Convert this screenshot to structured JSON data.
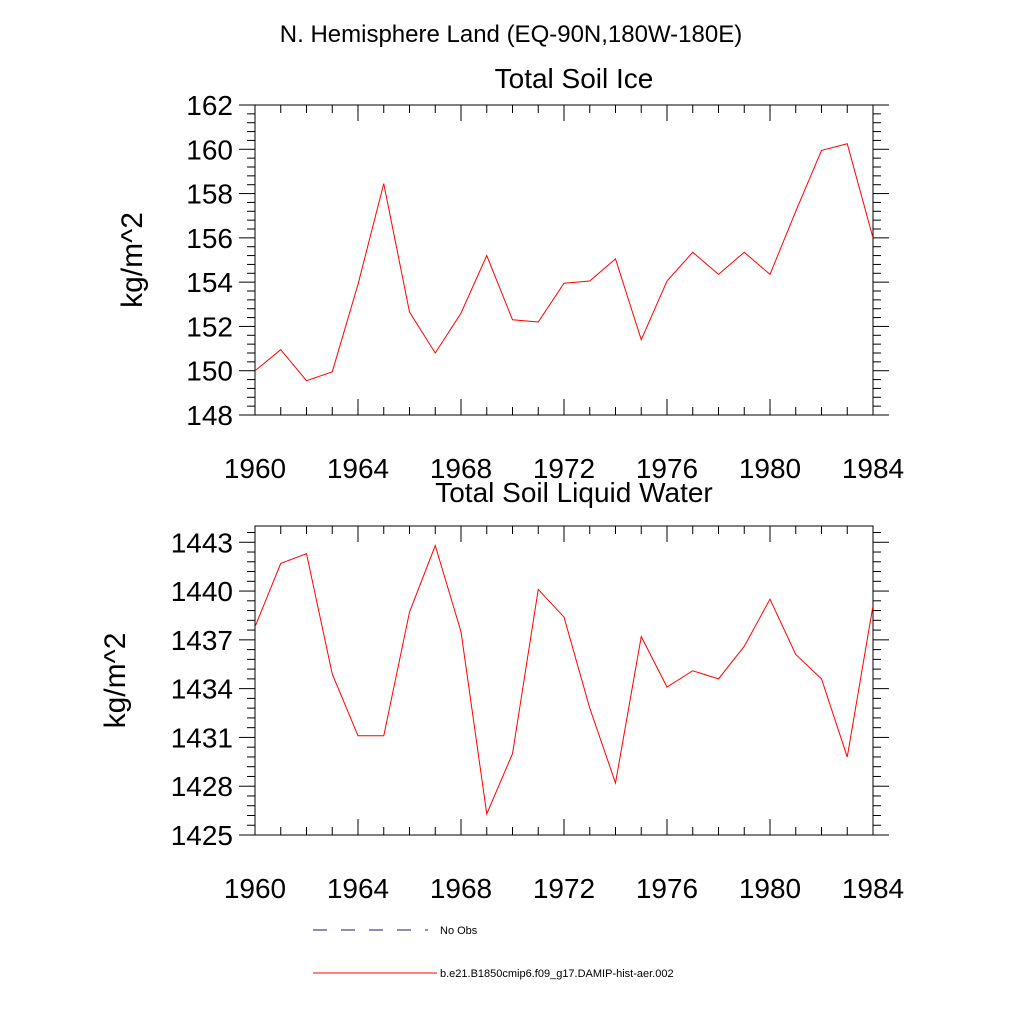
{
  "figure": {
    "main_title": "N. Hemisphere Land (EQ-90N,180W-180E)"
  },
  "colors": {
    "model_line": "#ff0000",
    "obs_line": "#1a1a6e",
    "axes": "#000000"
  },
  "legend": {
    "entries": [
      {
        "label": "No Obs",
        "style": "dashed",
        "color": "#1a1a6e"
      },
      {
        "label": "b.e21.B1850cmip6.f09_g17.DAMIP-hist-aer.002",
        "style": "solid",
        "color": "#ff0000"
      }
    ]
  },
  "chart_data": [
    {
      "type": "line",
      "title": "Total Soil Ice",
      "xlabel": "",
      "ylabel": "kg/m^2",
      "xlim": [
        1960,
        1984
      ],
      "ylim": [
        148,
        162
      ],
      "xticks": [
        1960,
        1964,
        1968,
        1972,
        1976,
        1980,
        1984
      ],
      "yticks": [
        148,
        150,
        152,
        154,
        156,
        158,
        160,
        162
      ],
      "grid": false,
      "x": [
        1960,
        1961,
        1962,
        1963,
        1964,
        1965,
        1966,
        1967,
        1968,
        1969,
        1970,
        1971,
        1972,
        1973,
        1974,
        1975,
        1976,
        1977,
        1978,
        1979,
        1980,
        1981,
        1982,
        1983,
        1984
      ],
      "series": [
        {
          "name": "b.e21.B1850cmip6.f09_g17.DAMIP-hist-aer.002",
          "color": "#ff0000",
          "values": [
            150.0,
            150.95,
            149.55,
            149.95,
            153.9,
            158.45,
            152.65,
            150.8,
            152.6,
            155.2,
            152.3,
            152.2,
            153.95,
            154.05,
            155.05,
            151.4,
            154.05,
            155.35,
            154.35,
            155.35,
            154.35,
            157.2,
            159.95,
            160.25,
            156.0
          ]
        }
      ]
    },
    {
      "type": "line",
      "title": "Total Soil Liquid Water",
      "xlabel": "",
      "ylabel": "kg/m^2",
      "xlim": [
        1960,
        1984
      ],
      "ylim": [
        1425,
        1444
      ],
      "xticks": [
        1960,
        1964,
        1968,
        1972,
        1976,
        1980,
        1984
      ],
      "yticks": [
        1425,
        1428,
        1431,
        1434,
        1437,
        1440,
        1443
      ],
      "grid": false,
      "x": [
        1960,
        1961,
        1962,
        1963,
        1964,
        1965,
        1966,
        1967,
        1968,
        1969,
        1970,
        1971,
        1972,
        1973,
        1974,
        1975,
        1976,
        1977,
        1978,
        1979,
        1980,
        1981,
        1982,
        1983,
        1984
      ],
      "series": [
        {
          "name": "b.e21.B1850cmip6.f09_g17.DAMIP-hist-aer.002",
          "color": "#ff0000",
          "values": [
            1437.8,
            1441.7,
            1442.3,
            1434.9,
            1431.1,
            1431.1,
            1438.7,
            1442.8,
            1437.5,
            1426.3,
            1430.0,
            1440.1,
            1438.4,
            1432.8,
            1428.2,
            1437.2,
            1434.1,
            1435.1,
            1434.6,
            1436.6,
            1439.5,
            1436.1,
            1434.6,
            1429.8,
            1439.1
          ]
        }
      ]
    }
  ]
}
